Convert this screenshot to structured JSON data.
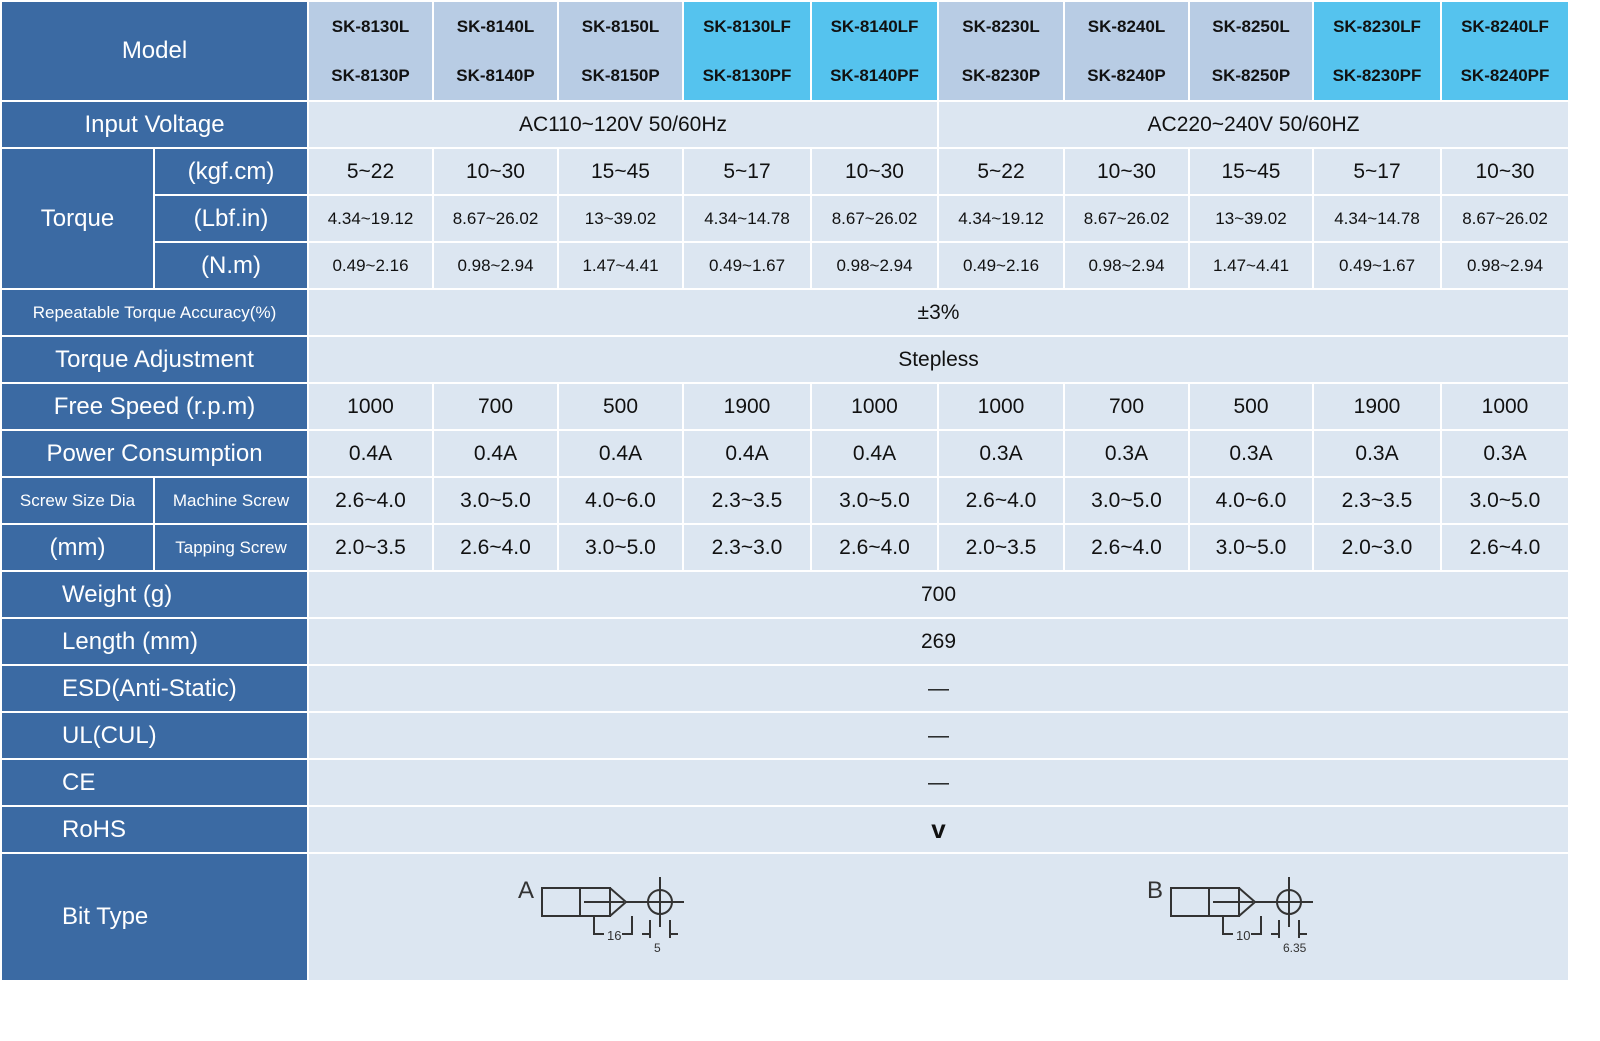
{
  "labels": {
    "model": "Model",
    "input_voltage": "Input Voltage",
    "torque": "Torque",
    "torque_units": [
      "(kgf.cm)",
      "(Lbf.in)",
      "(N.m)"
    ],
    "repeatable": "Repeatable Torque Accuracy(%)",
    "adjustment": "Torque Adjustment",
    "free_speed": "Free Speed (r.p.m)",
    "power": "Power Consumption",
    "screw_size_1": "Screw Size Dia",
    "screw_size_2": "(mm)",
    "machine_screw": "Machine Screw",
    "tapping_screw": "Tapping Screw",
    "weight": "Weight (g)",
    "length": "Length (mm)",
    "esd": "ESD(Anti-Static)",
    "ul": "UL(CUL)",
    "ce": "CE",
    "rohs": "RoHS",
    "bit_type": "Bit Type"
  },
  "colors": {
    "label_bg": "#3b6aa3",
    "header_bg": "#b8cce4",
    "highlight_bg": "#55c3ee",
    "cell_bg": "#dce6f1"
  },
  "models": [
    {
      "top": "SK-8130L",
      "bottom": "SK-8130P",
      "highlight": false
    },
    {
      "top": "SK-8140L",
      "bottom": "SK-8140P",
      "highlight": false
    },
    {
      "top": "SK-8150L",
      "bottom": "SK-8150P",
      "highlight": false
    },
    {
      "top": "SK-8130LF",
      "bottom": "SK-8130PF",
      "highlight": true
    },
    {
      "top": "SK-8140LF",
      "bottom": "SK-8140PF",
      "highlight": true
    },
    {
      "top": "SK-8230L",
      "bottom": "SK-8230P",
      "highlight": false
    },
    {
      "top": "SK-8240L",
      "bottom": "SK-8240P",
      "highlight": false
    },
    {
      "top": "SK-8250L",
      "bottom": "SK-8250P",
      "highlight": false
    },
    {
      "top": "SK-8230LF",
      "bottom": "SK-8230PF",
      "highlight": true
    },
    {
      "top": "SK-8240LF",
      "bottom": "SK-8240PF",
      "highlight": true
    }
  ],
  "input_voltage": [
    "AC110~120V 50/60Hz",
    "AC220~240V 50/60HZ"
  ],
  "torque_kgf": [
    "5~22",
    "10~30",
    "15~45",
    "5~17",
    "10~30",
    "5~22",
    "10~30",
    "15~45",
    "5~17",
    "10~30"
  ],
  "torque_lbf": [
    "4.34~19.12",
    "8.67~26.02",
    "13~39.02",
    "4.34~14.78",
    "8.67~26.02",
    "4.34~19.12",
    "8.67~26.02",
    "13~39.02",
    "4.34~14.78",
    "8.67~26.02"
  ],
  "torque_nm": [
    "0.49~2.16",
    "0.98~2.94",
    "1.47~4.41",
    "0.49~1.67",
    "0.98~2.94",
    "0.49~2.16",
    "0.98~2.94",
    "1.47~4.41",
    "0.49~1.67",
    "0.98~2.94"
  ],
  "repeatable": "±3%",
  "adjustment": "Stepless",
  "free_speed": [
    "1000",
    "700",
    "500",
    "1900",
    "1000",
    "1000",
    "700",
    "500",
    "1900",
    "1000"
  ],
  "power": [
    "0.4A",
    "0.4A",
    "0.4A",
    "0.4A",
    "0.4A",
    "0.3A",
    "0.3A",
    "0.3A",
    "0.3A",
    "0.3A"
  ],
  "machine_screw": [
    "2.6~4.0",
    "3.0~5.0",
    "4.0~6.0",
    "2.3~3.5",
    "3.0~5.0",
    "2.6~4.0",
    "3.0~5.0",
    "4.0~6.0",
    "2.3~3.5",
    "3.0~5.0"
  ],
  "tapping_screw": [
    "2.0~3.5",
    "2.6~4.0",
    "3.0~5.0",
    "2.3~3.0",
    "2.6~4.0",
    "2.0~3.5",
    "2.6~4.0",
    "3.0~5.0",
    "2.0~3.0",
    "2.6~4.0"
  ],
  "weight": "700",
  "length": "269",
  "esd": "—",
  "ul": "—",
  "ce": "—",
  "rohs": "v",
  "bits": [
    {
      "letter": "A",
      "length": "16",
      "size": "5"
    },
    {
      "letter": "B",
      "length": "10",
      "size": "6.35"
    }
  ]
}
